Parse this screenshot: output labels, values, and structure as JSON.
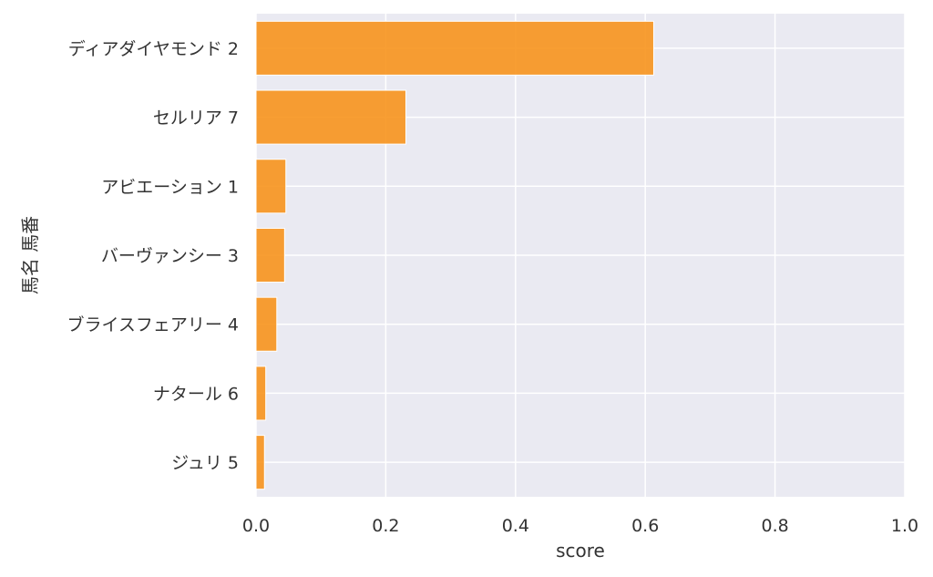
{
  "chart_data": {
    "type": "bar",
    "orientation": "horizontal",
    "categories": [
      "ディアダイヤモンド 2",
      "セルリア 7",
      "アビエーション 1",
      "バーヴァンシー 3",
      "ブライスフェアリー 4",
      "ナタール 6",
      "ジュリ 5"
    ],
    "values": [
      0.613,
      0.231,
      0.046,
      0.044,
      0.032,
      0.015,
      0.013
    ],
    "xlabel": "score",
    "ylabel": "馬名 馬番",
    "xlim": [
      0,
      1
    ],
    "xticks": [
      "0.0",
      "0.2",
      "0.4",
      "0.6",
      "0.8",
      "1.0"
    ],
    "grid": true,
    "colors": {
      "bar": "#f7941d",
      "bar_edge": "#ffffff",
      "plot_background": "#eaeaf2",
      "grid": "#ffffff"
    }
  }
}
